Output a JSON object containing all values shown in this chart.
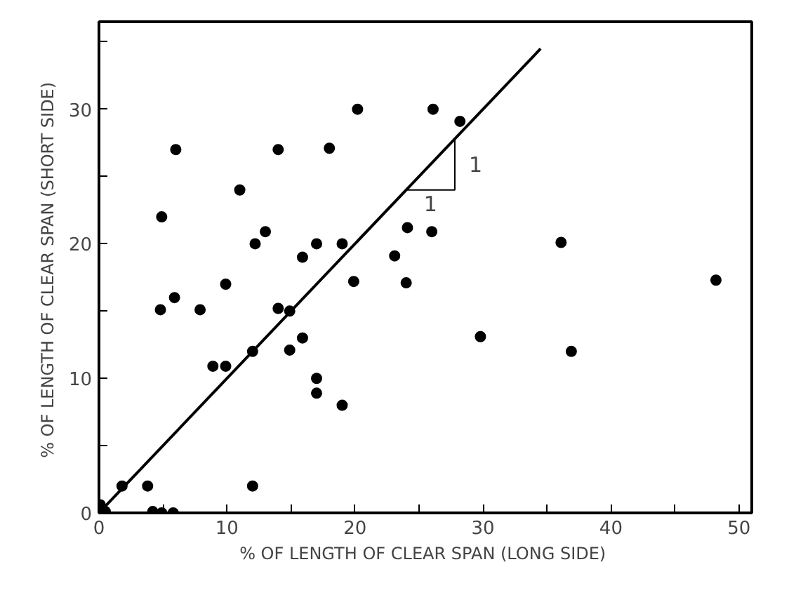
{
  "chart_data": {
    "type": "scatter",
    "xlabel": "% OF LENGTH OF CLEAR SPAN  (LONG SIDE)",
    "ylabel": "% OF LENGTH OF CLEAR SPAN  (SHORT SIDE)",
    "xlim": [
      0,
      51
    ],
    "ylim": [
      0,
      36.5
    ],
    "xticks": [
      0,
      {
        "value": 5,
        "label": null
      },
      10,
      {
        "value": 15,
        "label": null
      },
      20,
      {
        "value": 25,
        "label": null
      },
      30,
      {
        "value": 35,
        "label": null
      },
      40,
      {
        "value": 45,
        "label": null
      },
      50
    ],
    "yticks": [
      0,
      {
        "value": 5,
        "label": null
      },
      10,
      {
        "value": 15,
        "label": null
      },
      20,
      {
        "value": 25,
        "label": null
      },
      30,
      {
        "value": 35,
        "label": null
      }
    ],
    "grid": false,
    "marker": "circle",
    "series": [
      {
        "color": "#000000",
        "x": [
          6,
          14,
          18,
          20.2,
          26.1,
          28.2,
          11,
          4.9,
          13,
          12.2,
          17,
          19,
          15.9,
          9.9,
          19.9,
          5.9,
          4.8,
          7.9,
          14,
          14.9,
          24.1,
          26,
          36.1,
          23.1,
          24,
          48.2,
          15.9,
          14.9,
          12,
          8.9,
          9.9,
          17,
          17,
          19,
          1.8,
          3.8,
          12,
          4.2,
          4.9,
          5.8,
          0.1,
          0.5,
          29.8,
          36.9
        ],
        "values": [
          27,
          27,
          27.1,
          30,
          30,
          29.1,
          24,
          22,
          20.9,
          20,
          20,
          20,
          19,
          17,
          17.2,
          16,
          15.1,
          15.1,
          15.2,
          15,
          21.2,
          20.9,
          20.1,
          19.1,
          17.1,
          17.3,
          13,
          12.1,
          12,
          10.9,
          10.9,
          10,
          8.9,
          8,
          2,
          2,
          2,
          0.1,
          0,
          0,
          0.6,
          0.1,
          13.1,
          12
        ]
      },
      {
        "type": "line",
        "color": "#000000",
        "line_style": "solid",
        "marker": "none",
        "x": [
          0.5,
          34.5
        ],
        "values": [
          0.5,
          34.5
        ]
      }
    ],
    "annotations": [
      {
        "text": "1",
        "x": 27.8,
        "y": 27.8
      },
      {
        "text": "1",
        "x": 24,
        "y": 24
      }
    ]
  }
}
